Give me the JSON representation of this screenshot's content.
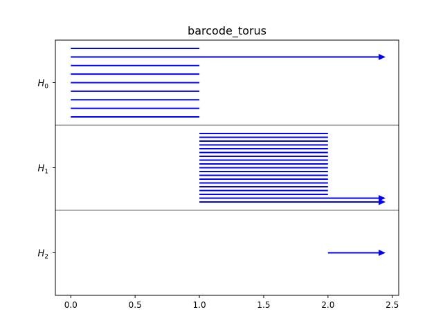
{
  "chart_data": {
    "type": "barcode",
    "title": "barcode_torus",
    "xlim": [
      -0.12,
      2.55
    ],
    "xticks": [
      0.0,
      0.5,
      1.0,
      1.5,
      2.0,
      2.5
    ],
    "xtick_labels": [
      "0.0",
      "0.5",
      "1.0",
      "1.5",
      "2.0",
      "2.5"
    ],
    "bar_color": "#0000ff",
    "separator_color": "#808080",
    "groups": [
      {
        "label_base": "H",
        "label_sub": "0",
        "bars": [
          {
            "start": 0.0,
            "end": 1.0
          },
          {
            "start": 0.0,
            "end": "inf"
          },
          {
            "start": 0.0,
            "end": 1.0
          },
          {
            "start": 0.0,
            "end": 1.0
          },
          {
            "start": 0.0,
            "end": 1.0
          },
          {
            "start": 0.0,
            "end": 1.0
          },
          {
            "start": 0.0,
            "end": 1.0
          },
          {
            "start": 0.0,
            "end": 1.0
          },
          {
            "start": 0.0,
            "end": 1.0
          }
        ]
      },
      {
        "label_base": "H",
        "label_sub": "1",
        "bars": [
          {
            "start": 1.0,
            "end": 2.0
          },
          {
            "start": 1.0,
            "end": 2.0
          },
          {
            "start": 1.0,
            "end": 2.0
          },
          {
            "start": 1.0,
            "end": 2.0
          },
          {
            "start": 1.0,
            "end": 2.0
          },
          {
            "start": 1.0,
            "end": 2.0
          },
          {
            "start": 1.0,
            "end": 2.0
          },
          {
            "start": 1.0,
            "end": 2.0
          },
          {
            "start": 1.0,
            "end": 2.0
          },
          {
            "start": 1.0,
            "end": 2.0
          },
          {
            "start": 1.0,
            "end": 2.0
          },
          {
            "start": 1.0,
            "end": 2.0
          },
          {
            "start": 1.0,
            "end": 2.0
          },
          {
            "start": 1.0,
            "end": 2.0
          },
          {
            "start": 1.0,
            "end": 2.0
          },
          {
            "start": 1.0,
            "end": 2.0
          },
          {
            "start": 1.0,
            "end": 2.0
          },
          {
            "start": 1.0,
            "end": "inf"
          },
          {
            "start": 1.0,
            "end": "inf"
          }
        ]
      },
      {
        "label_base": "H",
        "label_sub": "2",
        "bars": [
          {
            "start": 2.0,
            "end": "inf"
          }
        ]
      }
    ]
  }
}
